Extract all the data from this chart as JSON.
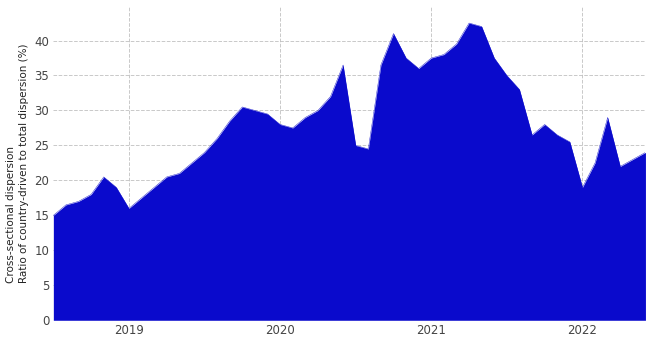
{
  "ylabel_line1": "Cross-sectional dispersion",
  "ylabel_line2": "Ratio of country-driven to total dispersion (%)",
  "fill_color": "#0a0aCC",
  "background_color": "#ffffff",
  "grid_color": "#bbbbbb",
  "ylim": [
    0,
    45
  ],
  "yticks": [
    0,
    5,
    10,
    15,
    20,
    25,
    30,
    35,
    40
  ],
  "values": [
    15.0,
    16.5,
    17.0,
    18.0,
    20.5,
    19.0,
    16.0,
    17.5,
    19.0,
    20.5,
    21.0,
    22.5,
    24.0,
    26.0,
    28.5,
    30.5,
    30.0,
    29.5,
    28.0,
    27.5,
    29.0,
    30.0,
    32.0,
    36.5,
    25.0,
    24.5,
    36.5,
    41.0,
    37.5,
    36.0,
    37.5,
    38.0,
    39.5,
    42.5,
    42.0,
    37.5,
    35.0,
    33.0,
    26.5,
    28.0,
    26.5,
    25.5,
    19.0,
    22.5,
    29.0,
    22.0,
    23.0,
    24.0
  ],
  "n_points": 48,
  "xtick_labels": [
    "2019",
    "2020",
    "2021",
    "2022"
  ],
  "xtick_positions": [
    6,
    18,
    30,
    42
  ],
  "ylabel_fontsize": 7.5,
  "tick_fontsize": 8.5
}
